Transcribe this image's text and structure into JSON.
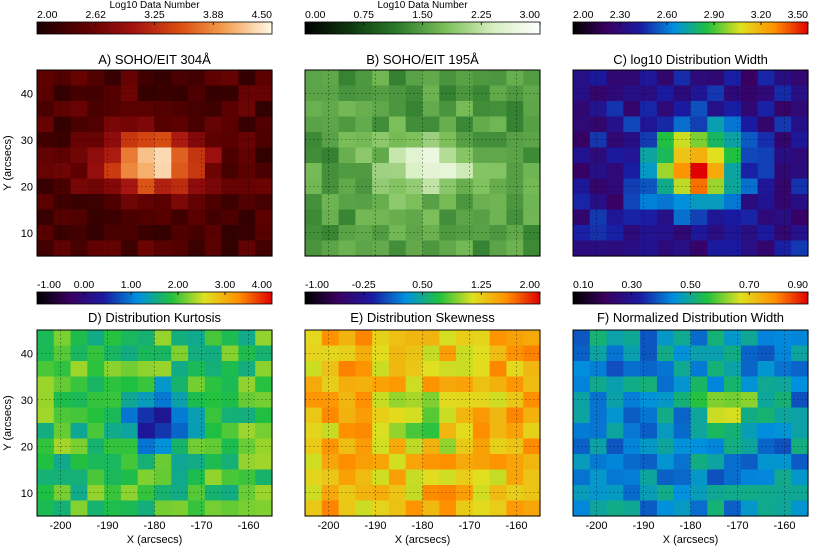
{
  "figure": {
    "xlabel": "X (arcsecs)",
    "ylabel": "Y (arcsecs)",
    "x_ticks": [
      "-200",
      "-190",
      "-180",
      "-170",
      "-160"
    ],
    "y_ticks": [
      "40",
      "30",
      "20",
      "10"
    ]
  },
  "colors": {
    "heat": [
      "#1a0000",
      "#5c0000",
      "#a01010",
      "#d84a10",
      "#f5a050",
      "#fff8e8"
    ],
    "green": [
      "#000000",
      "#0f3a0f",
      "#2e7d2e",
      "#7cbf5a",
      "#d6eebf",
      "#ffffff"
    ],
    "rainbow": [
      "#000000",
      "#3a0060",
      "#1a1aa0",
      "#0090e0",
      "#20c040",
      "#e0e020",
      "#ff9000",
      "#e00000"
    ]
  },
  "chart_data": [
    {
      "type": "heatmap",
      "id": "A",
      "title": "A) SOHO/EIT 304Å",
      "colorbar": {
        "label": "Log10 Data Number",
        "range": [
          2.0,
          4.5
        ],
        "ticks": [
          "2.00",
          "2.62",
          "3.25",
          "3.88",
          "4.50"
        ],
        "palette": "heat"
      },
      "xlim": [
        -205,
        -155
      ],
      "ylim": [
        5,
        45
      ],
      "cols": 14,
      "rows": 12,
      "value_range": [
        2.0,
        4.5
      ],
      "field": {
        "peak": 4.4,
        "center": [
          -180,
          25
        ],
        "spread": [
          10,
          6
        ],
        "base": 2.4
      }
    },
    {
      "type": "heatmap",
      "id": "B",
      "title": "B) SOHO/EIT 195Å",
      "colorbar": {
        "label": "Log10 Data Number",
        "range": [
          0.0,
          3.0
        ],
        "ticks": [
          "0.00",
          "0.75",
          "1.50",
          "2.25",
          "3.00"
        ],
        "palette": "green"
      },
      "xlim": [
        -205,
        -155
      ],
      "ylim": [
        5,
        45
      ],
      "cols": 14,
      "rows": 12,
      "value_range": [
        0.0,
        3.0
      ],
      "field": {
        "peak": 2.7,
        "center": [
          -179,
          24
        ],
        "spread": [
          10,
          6
        ],
        "base": 1.5
      }
    },
    {
      "type": "heatmap",
      "id": "C",
      "title": "C) log10 Distribution Width",
      "colorbar": {
        "label": "",
        "range": [
          2.0,
          3.5
        ],
        "ticks": [
          "2.00",
          "2.30",
          "2.60",
          "2.90",
          "3.20",
          "3.50"
        ],
        "palette": "rainbow"
      },
      "xlim": [
        -205,
        -155
      ],
      "ylim": [
        5,
        45
      ],
      "cols": 14,
      "rows": 12,
      "value_range": [
        2.0,
        3.5
      ],
      "field": {
        "peak": 3.45,
        "center": [
          -179,
          24
        ],
        "spread": [
          9,
          8
        ],
        "base": 2.35
      }
    },
    {
      "type": "heatmap",
      "id": "D",
      "title": "D) Distribution Kurtosis",
      "colorbar": {
        "label": "",
        "range": [
          -1.0,
          4.0
        ],
        "ticks": [
          "-1.00",
          "0.00",
          "1.00",
          "2.00",
          "3.00",
          "4.00"
        ],
        "palette": "rainbow"
      },
      "xlim": [
        -205,
        -155
      ],
      "ylim": [
        5,
        45
      ],
      "cols": 14,
      "rows": 12,
      "value_range": [
        -1.0,
        4.0
      ],
      "field": {
        "peak": 0.4,
        "center": [
          -180,
          25
        ],
        "spread": [
          7,
          6
        ],
        "base": 1.9
      }
    },
    {
      "type": "heatmap",
      "id": "E",
      "title": "E) Distribution Skewness",
      "colorbar": {
        "label": "",
        "range": [
          -1.0,
          2.0
        ],
        "ticks": [
          "-1.00",
          "-0.25",
          "0.50",
          "1.25",
          "2.00"
        ],
        "palette": "rainbow"
      },
      "xlim": [
        -205,
        -155
      ],
      "ylim": [
        5,
        45
      ],
      "cols": 14,
      "rows": 12,
      "value_range": [
        -1.0,
        2.0
      ],
      "field": {
        "peak": 0.9,
        "center": [
          -180,
          25
        ],
        "spread": [
          7,
          6
        ],
        "base": 1.35
      }
    },
    {
      "type": "heatmap",
      "id": "F",
      "title": "F) Normalized Distribution Width",
      "colorbar": {
        "label": "",
        "range": [
          0.1,
          0.9
        ],
        "ticks": [
          "0.10",
          "0.30",
          "0.50",
          "0.70",
          "0.90"
        ],
        "palette": "rainbow"
      },
      "xlim": [
        -205,
        -155
      ],
      "ylim": [
        5,
        45
      ],
      "cols": 14,
      "rows": 12,
      "value_range": [
        0.1,
        0.9
      ],
      "field": {
        "peak": 0.75,
        "center": [
          -172,
          28
        ],
        "spread": [
          5,
          4
        ],
        "base": 0.45
      }
    }
  ]
}
